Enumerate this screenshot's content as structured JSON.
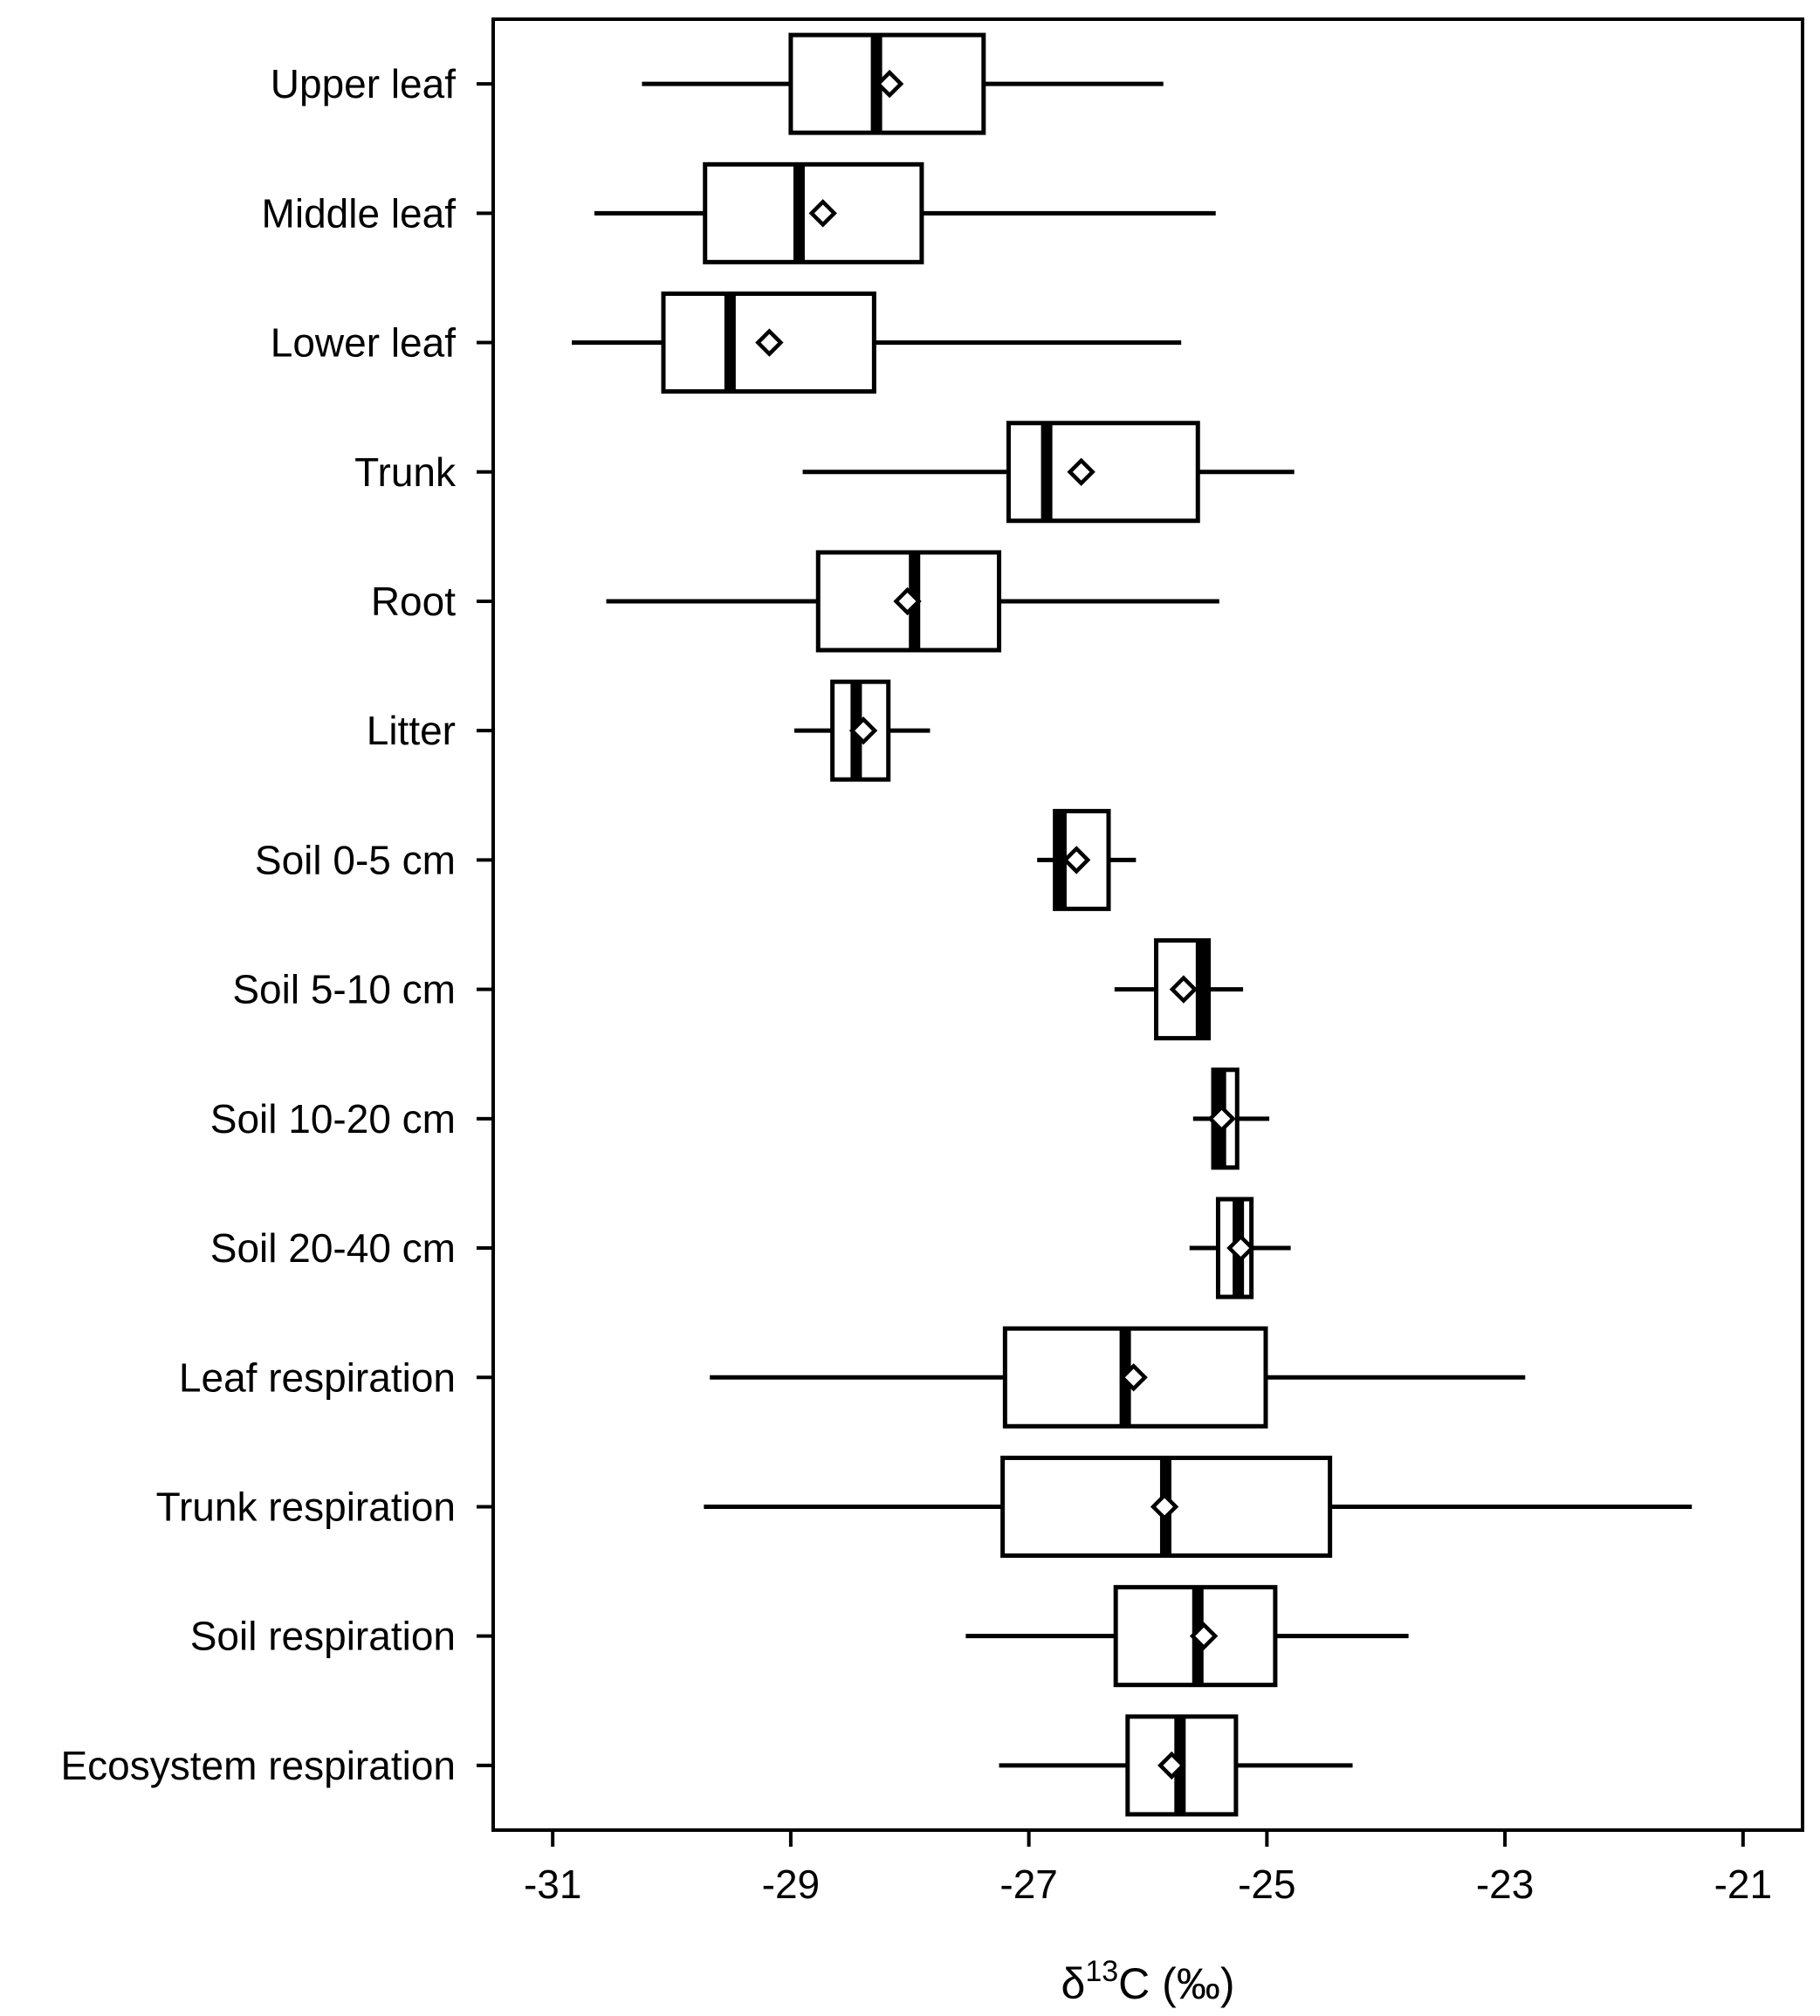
{
  "chart_data": {
    "type": "boxplot",
    "orientation": "horizontal",
    "xlabel": "δ13C (‰)",
    "xlabel_parts": {
      "base": "δ",
      "superscript": "13",
      "rest": "C (‰)"
    },
    "xlim": [
      -31.5,
      -20.5
    ],
    "xticks": [
      -31,
      -29,
      -27,
      -25,
      -23,
      -21
    ],
    "xtick_labels": [
      "-31",
      "-29",
      "-27",
      "-25",
      "-23",
      "-21"
    ],
    "grid": false,
    "categories": [
      "Upper leaf",
      "Middle leaf",
      "Lower leaf",
      "Trunk",
      "Root",
      "Litter",
      "Soil 0-5 cm",
      "Soil 5-10 cm",
      "Soil 10-20 cm",
      "Soil 20-40 cm",
      "Leaf respiration",
      "Trunk respiration",
      "Soil respiration",
      "Ecosystem respiration"
    ],
    "boxes": [
      {
        "label": "Upper leaf",
        "whisker_low": -30.25,
        "q1": -29.0,
        "median": -28.28,
        "q3": -27.38,
        "whisker_high": -25.87,
        "mean": -28.17
      },
      {
        "label": "Middle leaf",
        "whisker_low": -30.65,
        "q1": -29.72,
        "median": -28.93,
        "q3": -27.9,
        "whisker_high": -25.43,
        "mean": -28.73
      },
      {
        "label": "Lower leaf",
        "whisker_low": -30.84,
        "q1": -30.07,
        "median": -29.51,
        "q3": -28.3,
        "whisker_high": -25.72,
        "mean": -29.18
      },
      {
        "label": "Trunk",
        "whisker_low": -28.9,
        "q1": -27.17,
        "median": -26.85,
        "q3": -25.58,
        "whisker_high": -24.77,
        "mean": -26.56
      },
      {
        "label": "Root",
        "whisker_low": -30.55,
        "q1": -28.77,
        "median": -27.96,
        "q3": -27.25,
        "whisker_high": -25.4,
        "mean": -28.02
      },
      {
        "label": "Litter",
        "whisker_low": -28.97,
        "q1": -28.65,
        "median": -28.45,
        "q3": -28.18,
        "whisker_high": -27.83,
        "mean": -28.39
      },
      {
        "label": "Soil 0-5 cm",
        "whisker_low": -26.93,
        "q1": -26.78,
        "median": -26.73,
        "q3": -26.33,
        "whisker_high": -26.1,
        "mean": -26.6
      },
      {
        "label": "Soil 5-10 cm",
        "whisker_low": -26.28,
        "q1": -25.93,
        "median": -25.55,
        "q3": -25.49,
        "whisker_high": -25.2,
        "mean": -25.7
      },
      {
        "label": "Soil 10-20 cm",
        "whisker_low": -25.62,
        "q1": -25.45,
        "median": -25.39,
        "q3": -25.25,
        "whisker_high": -24.98,
        "mean": -25.38
      },
      {
        "label": "Soil 20-40 cm",
        "whisker_low": -25.65,
        "q1": -25.41,
        "median": -25.24,
        "q3": -25.13,
        "whisker_high": -24.8,
        "mean": -25.22
      },
      {
        "label": "Leaf respiration",
        "whisker_low": -29.68,
        "q1": -27.2,
        "median": -26.19,
        "q3": -25.01,
        "whisker_high": -22.83,
        "mean": -26.12
      },
      {
        "label": "Trunk respiration",
        "whisker_low": -29.73,
        "q1": -27.22,
        "median": -25.85,
        "q3": -24.47,
        "whisker_high": -21.43,
        "mean": -25.86
      },
      {
        "label": "Soil respiration",
        "whisker_low": -27.53,
        "q1": -26.27,
        "median": -25.58,
        "q3": -24.93,
        "whisker_high": -23.81,
        "mean": -25.53
      },
      {
        "label": "Ecosystem respiration",
        "whisker_low": -27.25,
        "q1": -26.17,
        "median": -25.73,
        "q3": -25.26,
        "whisker_high": -24.28,
        "mean": -25.8
      }
    ]
  }
}
